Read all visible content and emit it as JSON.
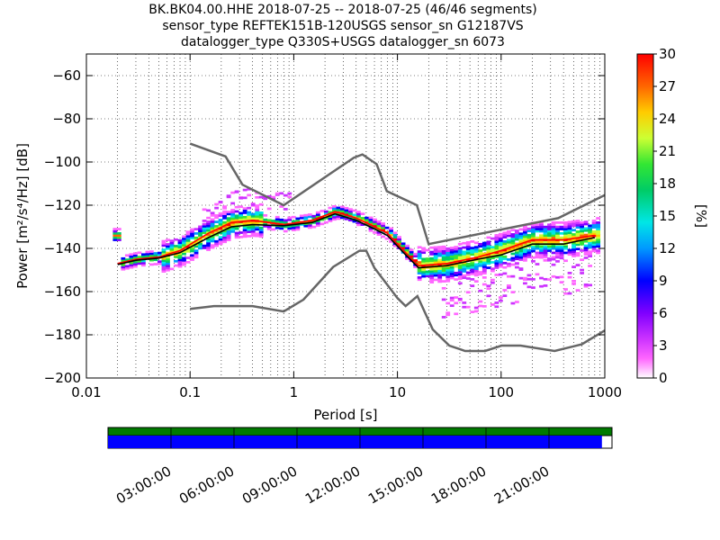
{
  "title_lines": [
    "BK.BK04.00.HHE   2018-07-25 -- 2018-07-25  (46/46 segments)",
    "sensor_type REFTEK151B-120USGS sensor_sn G12187VS",
    "datalogger_type Q330S+USGS datalogger_sn 6073"
  ],
  "colorbar": {
    "label": "[%]",
    "min": 0,
    "max": 30,
    "ticks": [
      "0",
      "3",
      "6",
      "9",
      "12",
      "15",
      "18",
      "21",
      "24",
      "27",
      "30"
    ]
  },
  "timeline": {
    "labels": [
      "03:00:00",
      "06:00:00",
      "09:00:00",
      "12:00:00",
      "15:00:00",
      "18:00:00",
      "21:00:00"
    ],
    "coverage_fraction": 0.98,
    "colors": {
      "data": "#0000ff",
      "gaps_bar": "#007a00"
    }
  },
  "chart_data": {
    "type": "heatmap",
    "xlabel": "Period [s]",
    "ylabel": "Power [m²/s⁴/Hz] [dB]",
    "xscale": "log",
    "xlim": [
      0.01,
      1000
    ],
    "ylim": [
      -200,
      -50
    ],
    "x_ticks": [
      "0.01",
      "0.1",
      "1",
      "10",
      "100",
      "1000"
    ],
    "y_ticks": [
      "−200",
      "−180",
      "−160",
      "−140",
      "−120",
      "−100",
      "−80",
      "−60"
    ],
    "y_tick_values": [
      -200,
      -180,
      -160,
      -140,
      -120,
      -100,
      -80,
      -60
    ],
    "grid": true,
    "series": [
      {
        "name": "NHNM",
        "color": "#666666",
        "points": [
          [
            0.1,
            -91.5
          ],
          [
            0.22,
            -97.4
          ],
          [
            0.32,
            -110.5
          ],
          [
            0.8,
            -120
          ],
          [
            3.8,
            -98
          ],
          [
            4.6,
            -96.5
          ],
          [
            6.3,
            -101
          ],
          [
            7.9,
            -113.5
          ],
          [
            15.4,
            -120
          ],
          [
            20,
            -138
          ],
          [
            354.8,
            -126
          ],
          [
            10000,
            -91.5
          ]
        ]
      },
      {
        "name": "NLNM",
        "color": "#666666",
        "points": [
          [
            0.1,
            -168
          ],
          [
            0.17,
            -166.7
          ],
          [
            0.4,
            -166.7
          ],
          [
            0.8,
            -169.2
          ],
          [
            1.24,
            -163.7
          ],
          [
            2.4,
            -148.6
          ],
          [
            4.3,
            -141.1
          ],
          [
            5,
            -141.1
          ],
          [
            6,
            -149
          ],
          [
            10,
            -163
          ],
          [
            12,
            -166.7
          ],
          [
            15.6,
            -162.1
          ],
          [
            21.9,
            -177.5
          ],
          [
            31.6,
            -185
          ],
          [
            45,
            -187.5
          ],
          [
            70,
            -187.5
          ],
          [
            101,
            -185
          ],
          [
            154,
            -185
          ],
          [
            328,
            -187.5
          ],
          [
            600,
            -184.4
          ],
          [
            1000,
            -178
          ]
        ]
      },
      {
        "name": "mode",
        "color": "#ff0000",
        "points": [
          [
            0.02,
            -147
          ],
          [
            0.03,
            -145
          ],
          [
            0.05,
            -144
          ],
          [
            0.08,
            -141
          ],
          [
            0.15,
            -133
          ],
          [
            0.25,
            -128
          ],
          [
            0.4,
            -127
          ],
          [
            0.8,
            -129
          ],
          [
            1.5,
            -127
          ],
          [
            2.5,
            -123
          ],
          [
            4,
            -126
          ],
          [
            6,
            -130
          ],
          [
            8,
            -133
          ],
          [
            12,
            -142
          ],
          [
            16,
            -148
          ],
          [
            30,
            -147
          ],
          [
            60,
            -144
          ],
          [
            100,
            -141
          ],
          [
            200,
            -136
          ],
          [
            400,
            -136
          ],
          [
            800,
            -134
          ]
        ]
      },
      {
        "name": "mean",
        "color": "#000000",
        "points": [
          [
            0.02,
            -147.5
          ],
          [
            0.03,
            -145.5
          ],
          [
            0.05,
            -144.5
          ],
          [
            0.08,
            -142
          ],
          [
            0.15,
            -135
          ],
          [
            0.25,
            -130
          ],
          [
            0.4,
            -129
          ],
          [
            0.8,
            -129.5
          ],
          [
            1.5,
            -128
          ],
          [
            2.5,
            -124
          ],
          [
            4,
            -127
          ],
          [
            6,
            -131
          ],
          [
            8,
            -134
          ],
          [
            12,
            -143
          ],
          [
            16,
            -149
          ],
          [
            30,
            -148
          ],
          [
            60,
            -145
          ],
          [
            100,
            -143
          ],
          [
            200,
            -138
          ],
          [
            400,
            -138
          ],
          [
            800,
            -135
          ]
        ]
      }
    ]
  }
}
